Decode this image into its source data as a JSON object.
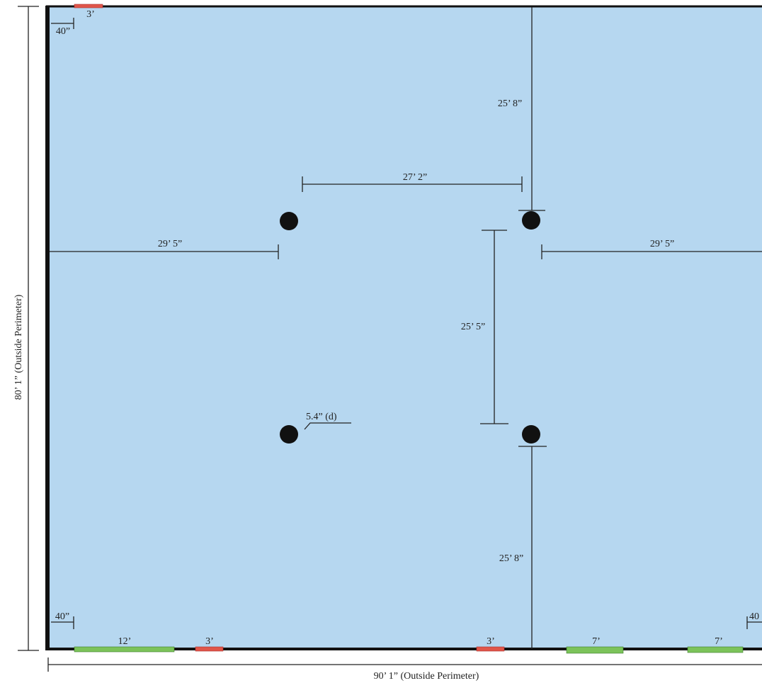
{
  "perimeter": {
    "height": "80’ 1” (Outside Perimeter)",
    "width": "90’ 1” (Outside Perimeter)"
  },
  "dimensions": {
    "top_column_to_wall": "25’ 8”",
    "column_spacing_horizontal": "27’ 2”",
    "left_wall_to_column": "29’ 5”",
    "right_column_to_wall": "29’ 5”",
    "column_spacing_vertical": "25’ 5”",
    "column_diameter": "5.4” (d)",
    "bottom_column_to_wall": "25’ 8”",
    "top_left_offset": "40”",
    "bottom_left_offset": "40”",
    "bottom_right_offset": "40"
  },
  "openings": {
    "top": "3’",
    "bottom": [
      "12’",
      "3’",
      "3’",
      "7’",
      "7’"
    ]
  }
}
